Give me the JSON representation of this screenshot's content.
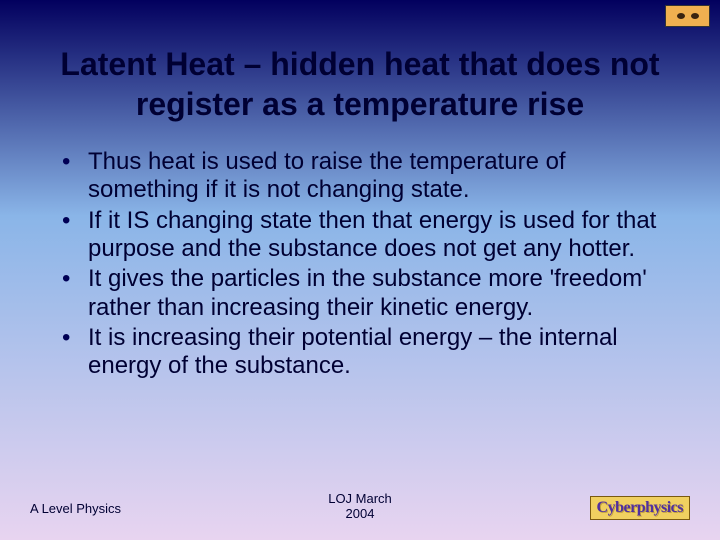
{
  "title": "Latent Heat – hidden heat that does not register as a temperature rise",
  "bullets": [
    "Thus heat is used to raise the temperature of something if it is not changing state.",
    "If it IS changing state then that energy is used for that purpose and the substance does not get any hotter.",
    "It gives the particles in the substance more 'freedom' rather than increasing their kinetic energy.",
    "It is increasing their potential energy – the internal energy of the substance."
  ],
  "footer": {
    "left": "A Level Physics",
    "center_line1": "LOJ March",
    "center_line2": "2004",
    "logo": "Cyberphysics"
  },
  "colors": {
    "grad_top": "#02005e",
    "grad_mid": "#8ab5e8",
    "grad_bot": "#e8d4f0",
    "text": "#000033",
    "logo_bg": "#f0d060",
    "logo_text": "#5030a0"
  }
}
